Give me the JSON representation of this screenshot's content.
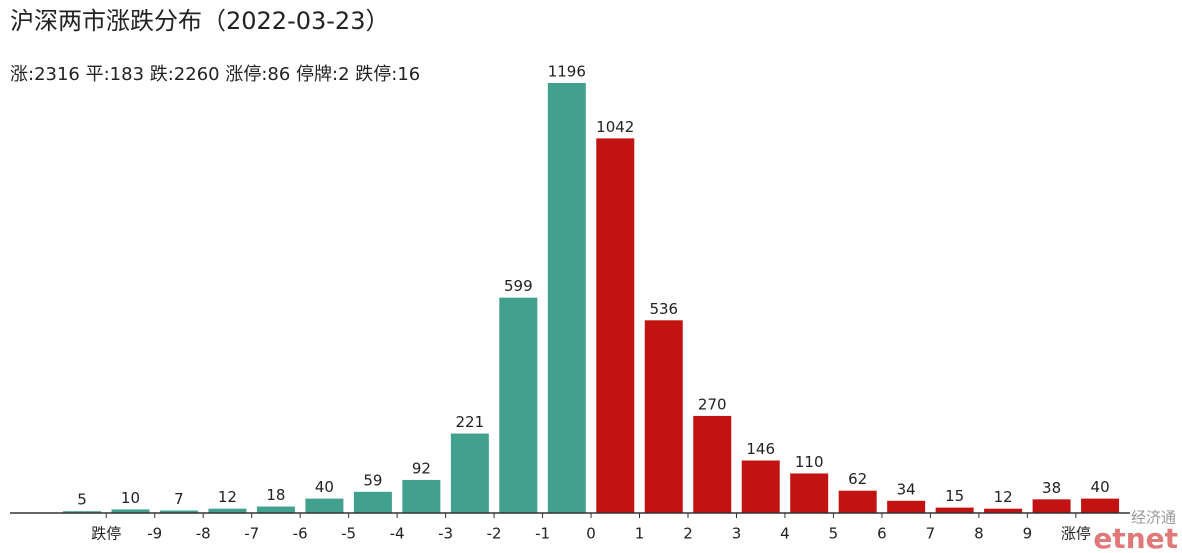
{
  "chart_data": {
    "type": "bar",
    "title": "沪深两市涨跌分布（2022-03-23）",
    "subtitle": "涨:2316 平:183 跌:2260 涨停:86 停牌:2 跌停:16",
    "values": [
      5,
      10,
      7,
      12,
      18,
      40,
      59,
      92,
      221,
      599,
      1196,
      1042,
      536,
      270,
      146,
      110,
      62,
      34,
      15,
      12,
      38,
      40
    ],
    "colors": [
      "#42a08e",
      "#42a08e",
      "#42a08e",
      "#42a08e",
      "#42a08e",
      "#42a08e",
      "#42a08e",
      "#42a08e",
      "#42a08e",
      "#42a08e",
      "#42a08e",
      "#c21313",
      "#c21313",
      "#c21313",
      "#c21313",
      "#c21313",
      "#c21313",
      "#c21313",
      "#c21313",
      "#c21313",
      "#c21313",
      "#c21313"
    ],
    "x_tick_labels": [
      "跌停",
      "-9",
      "-8",
      "-7",
      "-6",
      "-5",
      "-4",
      "-3",
      "-2",
      "-1",
      "0",
      "1",
      "2",
      "3",
      "4",
      "5",
      "6",
      "7",
      "8",
      "9",
      "涨停"
    ],
    "ylim": [
      0,
      1250
    ],
    "watermark": [
      "经济通",
      "etnet"
    ]
  }
}
